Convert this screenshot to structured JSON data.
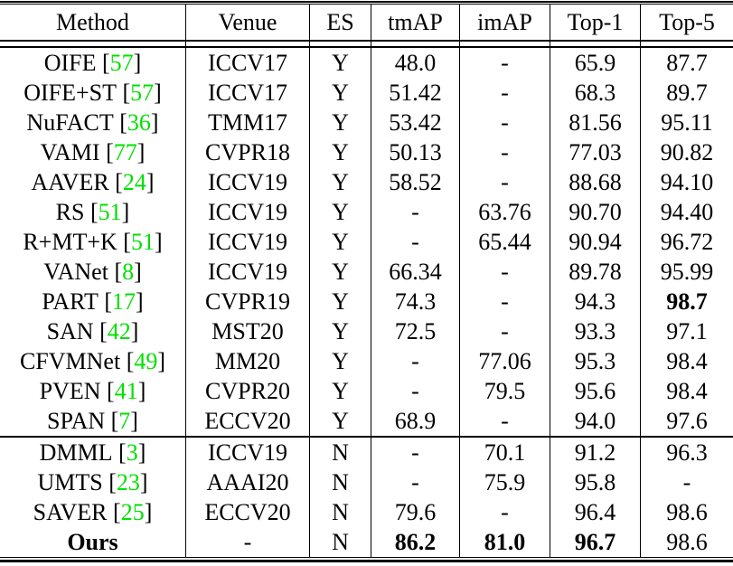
{
  "table": {
    "columns": [
      "Method",
      "Venue",
      "ES",
      "tmAP",
      "imAP",
      "Top-1",
      "Top-5"
    ],
    "citation_color": "#00e000",
    "citation_brackets": [
      "[",
      "]"
    ],
    "sections": [
      {
        "rows": [
          {
            "method": "OIFE",
            "ref": "57",
            "venue": "ICCV17",
            "es": "Y",
            "tmAP": "48.0",
            "imAP": "-",
            "top1": "65.9",
            "top5": "87.7",
            "bold": []
          },
          {
            "method": "OIFE+ST",
            "ref": "57",
            "venue": "ICCV17",
            "es": "Y",
            "tmAP": "51.42",
            "imAP": "-",
            "top1": "68.3",
            "top5": "89.7",
            "bold": []
          },
          {
            "method": "NuFACT",
            "ref": "36",
            "venue": "TMM17",
            "es": "Y",
            "tmAP": "53.42",
            "imAP": "-",
            "top1": "81.56",
            "top5": "95.11",
            "bold": []
          },
          {
            "method": "VAMI",
            "ref": "77",
            "venue": "CVPR18",
            "es": "Y",
            "tmAP": "50.13",
            "imAP": "-",
            "top1": "77.03",
            "top5": "90.82",
            "bold": []
          },
          {
            "method": "AAVER",
            "ref": "24",
            "venue": "ICCV19",
            "es": "Y",
            "tmAP": "58.52",
            "imAP": "-",
            "top1": "88.68",
            "top5": "94.10",
            "bold": []
          },
          {
            "method": "RS",
            "ref": "51",
            "venue": "ICCV19",
            "es": "Y",
            "tmAP": "-",
            "imAP": "63.76",
            "top1": "90.70",
            "top5": "94.40",
            "bold": []
          },
          {
            "method": "R+MT+K",
            "ref": "51",
            "venue": "ICCV19",
            "es": "Y",
            "tmAP": "-",
            "imAP": "65.44",
            "top1": "90.94",
            "top5": "96.72",
            "bold": []
          },
          {
            "method": "VANet",
            "ref": "8",
            "venue": "ICCV19",
            "es": "Y",
            "tmAP": "66.34",
            "imAP": "-",
            "top1": "89.78",
            "top5": "95.99",
            "bold": []
          },
          {
            "method": "PART",
            "ref": "17",
            "venue": "CVPR19",
            "es": "Y",
            "tmAP": "74.3",
            "imAP": "-",
            "top1": "94.3",
            "top5": "98.7",
            "bold": [
              "top5"
            ]
          },
          {
            "method": "SAN",
            "ref": "42",
            "venue": "MST20",
            "es": "Y",
            "tmAP": "72.5",
            "imAP": "-",
            "top1": "93.3",
            "top5": "97.1",
            "bold": []
          },
          {
            "method": "CFVMNet",
            "ref": "49",
            "venue": "MM20",
            "es": "Y",
            "tmAP": "-",
            "imAP": "77.06",
            "top1": "95.3",
            "top5": "98.4",
            "bold": []
          },
          {
            "method": "PVEN",
            "ref": "41",
            "venue": "CVPR20",
            "es": "Y",
            "tmAP": "-",
            "imAP": "79.5",
            "top1": "95.6",
            "top5": "98.4",
            "bold": []
          },
          {
            "method": "SPAN",
            "ref": "7",
            "venue": "ECCV20",
            "es": "Y",
            "tmAP": "68.9",
            "imAP": "-",
            "top1": "94.0",
            "top5": "97.6",
            "bold": []
          }
        ]
      },
      {
        "rows": [
          {
            "method": "DMML",
            "ref": "3",
            "venue": "ICCV19",
            "es": "N",
            "tmAP": "-",
            "imAP": "70.1",
            "top1": "91.2",
            "top5": "96.3",
            "bold": []
          },
          {
            "method": "UMTS",
            "ref": "23",
            "venue": "AAAI20",
            "es": "N",
            "tmAP": "-",
            "imAP": "75.9",
            "top1": "95.8",
            "top5": "-",
            "bold": []
          },
          {
            "method": "SAVER",
            "ref": "25",
            "venue": "ECCV20",
            "es": "N",
            "tmAP": "79.6",
            "imAP": "-",
            "top1": "96.4",
            "top5": "98.6",
            "bold": []
          },
          {
            "method": "Ours",
            "ref": null,
            "venue": "-",
            "es": "N",
            "tmAP": "86.2",
            "imAP": "81.0",
            "top1": "96.7",
            "top5": "98.6",
            "bold": [
              "method",
              "tmAP",
              "imAP",
              "top1"
            ]
          }
        ]
      }
    ]
  }
}
